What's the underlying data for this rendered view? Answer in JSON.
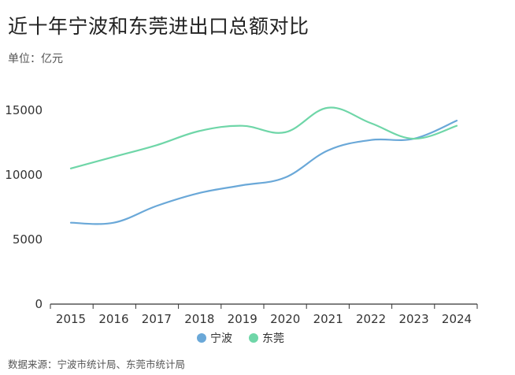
{
  "header": {
    "title": "近十年宁波和东莞进出口总额对比",
    "unit": "单位：亿元"
  },
  "footer": {
    "source": "数据来源：宁波市统计局、东莞市统计局"
  },
  "chart_data": {
    "type": "line",
    "title": "近十年宁波和东莞进出口总额对比",
    "ylabel": "单位：亿元",
    "xlabel": "",
    "x": [
      "2015",
      "2016",
      "2017",
      "2018",
      "2019",
      "2020",
      "2021",
      "2022",
      "2023",
      "2024"
    ],
    "yticks": [
      0,
      5000,
      10000,
      15000
    ],
    "ylim": [
      0,
      16500
    ],
    "grid": false,
    "smooth": true,
    "legend": "bottom-center",
    "series": [
      {
        "name": "宁波",
        "color": "#6aa8d8",
        "values": [
          6300,
          6300,
          7600,
          8600,
          9200,
          9800,
          11900,
          12700,
          12800,
          14200
        ]
      },
      {
        "name": "东莞",
        "color": "#6fd6a8",
        "values": [
          10500,
          11400,
          12300,
          13400,
          13800,
          13300,
          15200,
          14000,
          12800,
          13800
        ]
      }
    ]
  }
}
